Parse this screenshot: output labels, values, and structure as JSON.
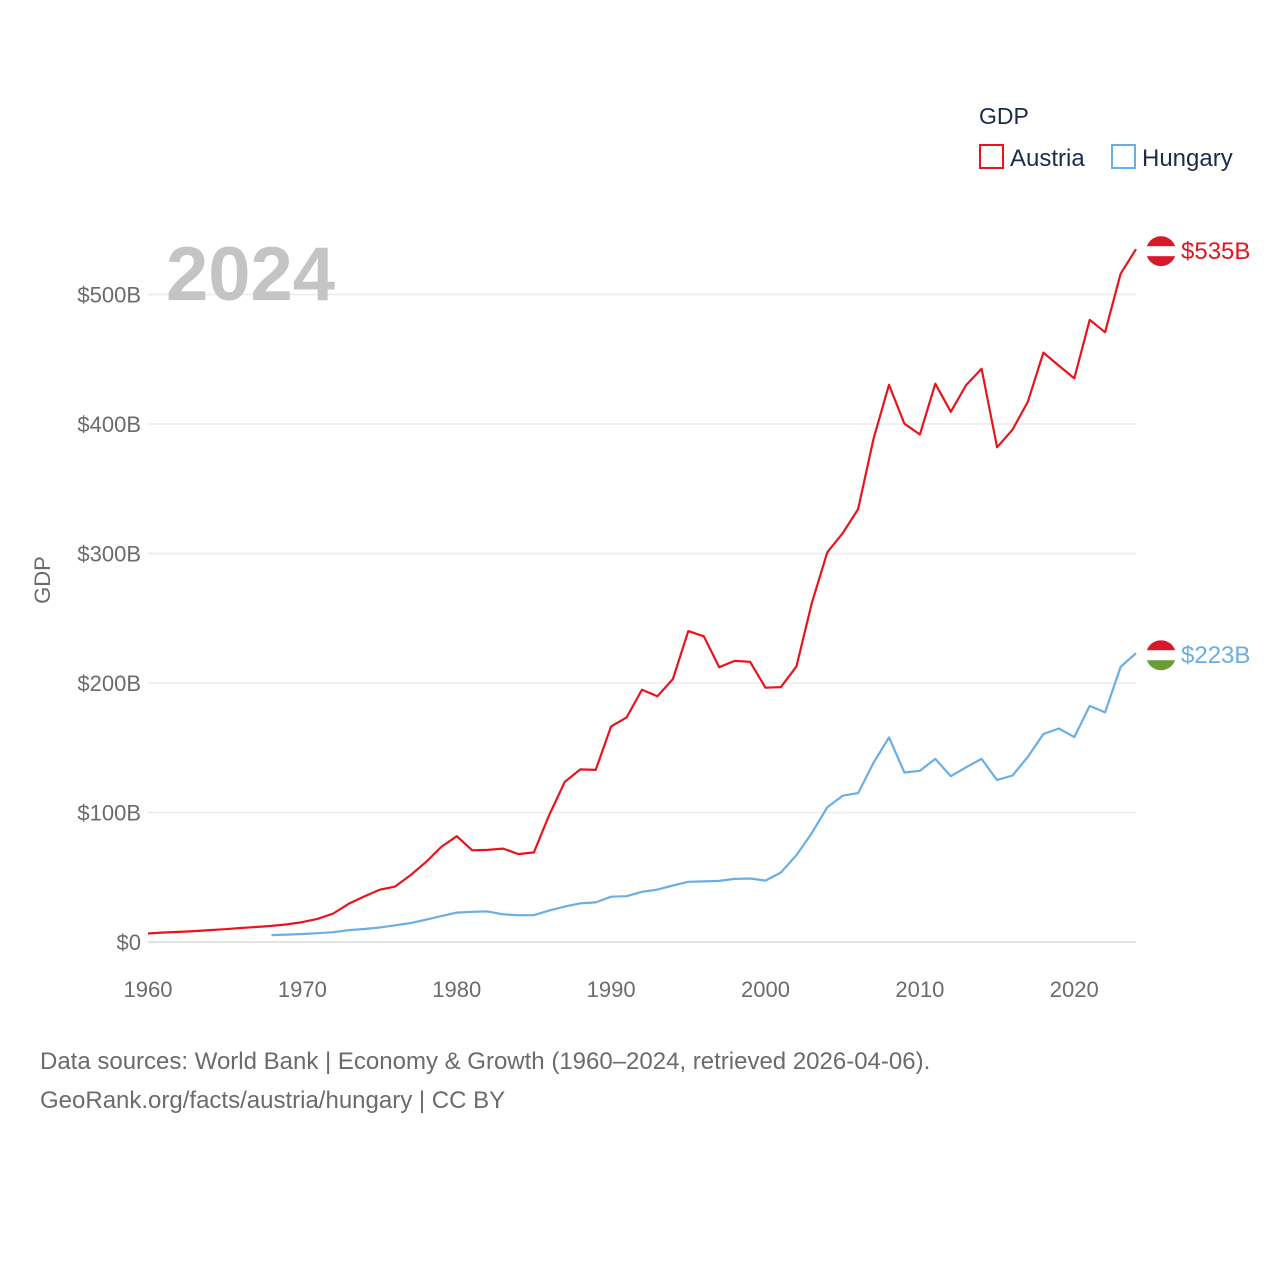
{
  "chart_data": {
    "type": "line",
    "year_label": "2024",
    "ylabel": "GDP",
    "xlim": [
      1960,
      2024
    ],
    "ylim": [
      0,
      535
    ],
    "x_ticks": [
      1960,
      1970,
      1980,
      1990,
      2000,
      2010,
      2020
    ],
    "y_ticks": [
      0,
      100,
      200,
      300,
      400,
      500
    ],
    "y_tick_labels": [
      "$0",
      "$100B",
      "$200B",
      "$300B",
      "$400B",
      "$500B"
    ],
    "legend": {
      "title": "GDP",
      "position": "top-right"
    },
    "series": [
      {
        "name": "Austria",
        "color": "#e8141c",
        "end_label": "$535B",
        "flag": "austria",
        "x": [
          1960,
          1961,
          1962,
          1963,
          1964,
          1965,
          1966,
          1967,
          1968,
          1969,
          1970,
          1971,
          1972,
          1973,
          1974,
          1975,
          1976,
          1977,
          1978,
          1979,
          1980,
          1981,
          1982,
          1983,
          1984,
          1985,
          1986,
          1987,
          1988,
          1989,
          1990,
          1991,
          1992,
          1993,
          1994,
          1995,
          1996,
          1997,
          1998,
          1999,
          2000,
          2001,
          2002,
          2003,
          2004,
          2005,
          2006,
          2007,
          2008,
          2009,
          2010,
          2011,
          2012,
          2013,
          2014,
          2015,
          2016,
          2017,
          2018,
          2019,
          2020,
          2021,
          2022,
          2023,
          2024
        ],
        "values": [
          6.6,
          7.3,
          7.8,
          8.4,
          9.2,
          9.9,
          10.8,
          11.6,
          12.4,
          13.6,
          15.4,
          17.9,
          22,
          29.5,
          35.1,
          40.3,
          42.8,
          51.5,
          61.7,
          73.4,
          81.7,
          70.8,
          71.1,
          72.1,
          67.9,
          69.2,
          98.4,
          123.7,
          133.3,
          132.9,
          166.5,
          173.4,
          194.8,
          189.7,
          203.1,
          240.1,
          236.1,
          212.2,
          217.1,
          216.4,
          196.4,
          196.8,
          212.7,
          261.7,
          300.9,
          315.7,
          334.3,
          388.7,
          430.3,
          400.2,
          391.9,
          431.1,
          409.4,
          430.1,
          442.6,
          382,
          395.6,
          417.3,
          455.1,
          445.1,
          435.2,
          480.4,
          470.9,
          516,
          535
        ]
      },
      {
        "name": "Hungary",
        "color": "#6aaee6",
        "end_label": "$223B",
        "flag": "hungary",
        "x": [
          1968,
          1969,
          1970,
          1971,
          1972,
          1973,
          1974,
          1975,
          1976,
          1977,
          1978,
          1979,
          1980,
          1981,
          1982,
          1983,
          1984,
          1985,
          1986,
          1987,
          1988,
          1989,
          1990,
          1991,
          1992,
          1993,
          1994,
          1995,
          1996,
          1997,
          1998,
          1999,
          2000,
          2001,
          2002,
          2003,
          2004,
          2005,
          2006,
          2007,
          2008,
          2009,
          2010,
          2011,
          2012,
          2013,
          2014,
          2015,
          2016,
          2017,
          2018,
          2019,
          2020,
          2021,
          2022,
          2023,
          2024
        ],
        "values": [
          5.3,
          5.7,
          6.2,
          6.8,
          7.6,
          9.2,
          10,
          11.2,
          12.9,
          14.6,
          17.2,
          20,
          22.7,
          23.3,
          23.6,
          21.4,
          20.7,
          20.7,
          24.4,
          27.3,
          29.9,
          30.6,
          35,
          35.4,
          38.8,
          40.5,
          43.6,
          46.5,
          46.8,
          47.2,
          48.7,
          49,
          47.4,
          53.7,
          67,
          84.1,
          104.1,
          113,
          115,
          138.5,
          158,
          130.9,
          132.2,
          141.4,
          128,
          135,
          141.4,
          125,
          128.6,
          143,
          160.6,
          164.9,
          158.2,
          182.3,
          177.3,
          212.4,
          223
        ]
      }
    ]
  },
  "footer": {
    "line1": "Data sources: World Bank | Economy & Growth (1960–2024, retrieved 2026-04-06).",
    "line2": "GeoRank.org/facts/austria/hungary | CC BY"
  }
}
